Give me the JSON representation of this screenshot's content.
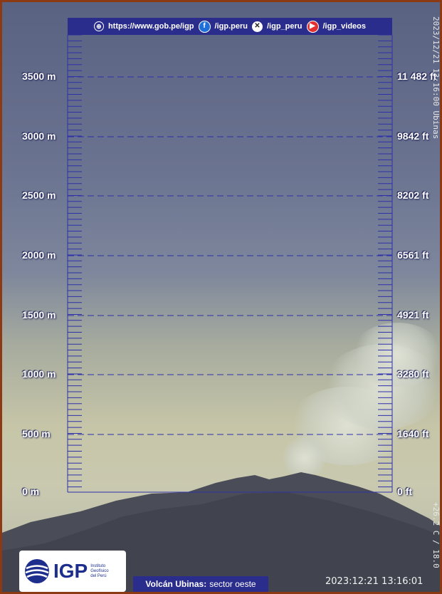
{
  "topbar": {
    "website": "https://www.gob.pe/igp",
    "facebook": "/igp.peru",
    "x": "/igp_peru",
    "youtube": "/igp_videos",
    "icons": [
      "globe-icon",
      "facebook-icon",
      "x-icon",
      "youtube-icon"
    ]
  },
  "scale_meters": [
    "3500 m",
    "3000 m",
    "2500 m",
    "2000 m",
    "1500 m",
    "1000 m",
    "500 m",
    "0 m"
  ],
  "scale_feet": [
    "11 482 ft",
    "9842 ft",
    "8202 ft",
    "6561 ft",
    "4921 ft",
    "3280 ft",
    "1640 ft",
    "0 ft"
  ],
  "stamp_vertical_top": "2023/12/21 13:16:00 Ubinas",
  "stamp_vertical_bottom": "+26.2 C / 18.0",
  "logo": {
    "name": "IGP",
    "institution": [
      "Instituto",
      "Geofísico",
      "del Perú"
    ]
  },
  "caption": {
    "volcano": "Volcán Ubinas:",
    "sector": "sector oeste"
  },
  "datetime": "2023:12:21 13:16:01",
  "colors": {
    "bar": "#2a2d8c",
    "grid": "#2e31a8",
    "frame": "#8b3a14"
  }
}
